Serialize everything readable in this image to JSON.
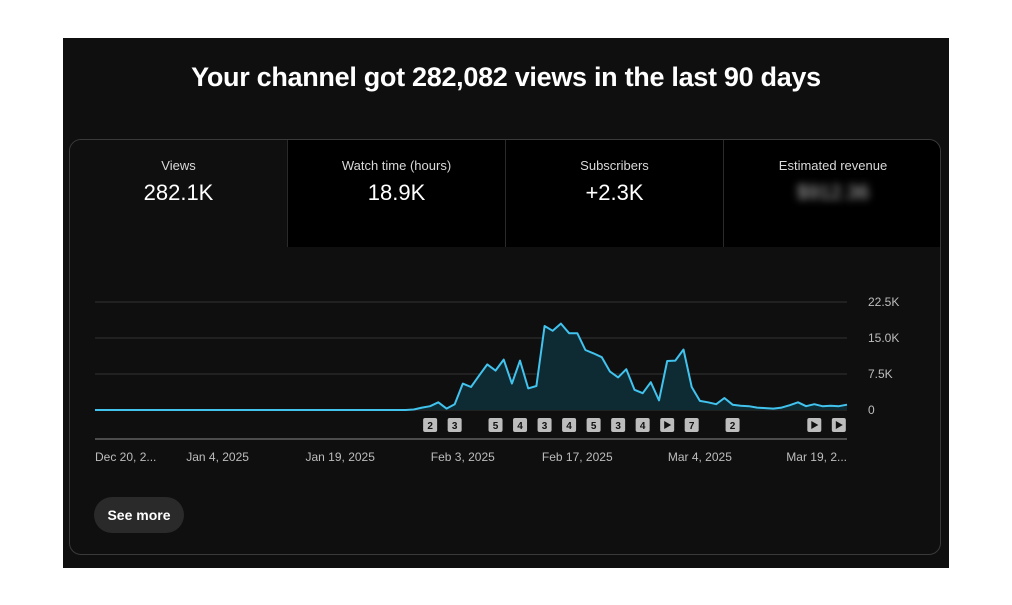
{
  "headline": "Your channel got 282,082 views in the last 90 days",
  "tabs": [
    {
      "label": "Views",
      "value": "282.1K",
      "selected": true
    },
    {
      "label": "Watch time (hours)",
      "value": "18.9K",
      "selected": false
    },
    {
      "label": "Subscribers",
      "value": "+2.3K",
      "selected": false
    },
    {
      "label": "Estimated revenue",
      "value": "$912.36",
      "selected": false,
      "obscured": true
    }
  ],
  "see_more_label": "See more",
  "colors": {
    "line": "#41c3ee",
    "area": "#0e2a33",
    "grid": "#333333",
    "background": "#0f0f0f"
  },
  "chart_data": {
    "type": "area",
    "title": "",
    "xlabel": "",
    "ylabel": "",
    "x_range": [
      "2024-12-20",
      "2025-03-22"
    ],
    "ylim": [
      0,
      22500
    ],
    "y_ticks": [
      {
        "value": 22500,
        "label": "22.5K"
      },
      {
        "value": 15000,
        "label": "15.0K"
      },
      {
        "value": 7500,
        "label": "7.5K"
      },
      {
        "value": 0,
        "label": "0"
      }
    ],
    "x_ticks": [
      {
        "date": "2024-12-20",
        "label": "Dec 20, 2..."
      },
      {
        "date": "2025-01-04",
        "label": "Jan 4, 2025"
      },
      {
        "date": "2025-01-19",
        "label": "Jan 19, 2025"
      },
      {
        "date": "2025-02-03",
        "label": "Feb 3, 2025"
      },
      {
        "date": "2025-02-17",
        "label": "Feb 17, 2025"
      },
      {
        "date": "2025-03-04",
        "label": "Mar 4, 2025"
      },
      {
        "date": "2025-03-19",
        "label": "Mar 19, 2..."
      }
    ],
    "grid": true,
    "series": [
      {
        "points": [
          [
            "2024-12-20",
            0
          ],
          [
            "2025-01-01",
            0
          ],
          [
            "2025-01-15",
            0
          ],
          [
            "2025-01-27",
            0
          ],
          [
            "2025-01-28",
            100
          ],
          [
            "2025-01-29",
            500
          ],
          [
            "2025-01-30",
            800
          ],
          [
            "2025-01-31",
            1600
          ],
          [
            "2025-02-01",
            300
          ],
          [
            "2025-02-02",
            1200
          ],
          [
            "2025-02-03",
            5500
          ],
          [
            "2025-02-04",
            4800
          ],
          [
            "2025-02-05",
            7200
          ],
          [
            "2025-02-06",
            9500
          ],
          [
            "2025-02-07",
            8200
          ],
          [
            "2025-02-08",
            10500
          ],
          [
            "2025-02-09",
            5500
          ],
          [
            "2025-02-10",
            10300
          ],
          [
            "2025-02-11",
            4500
          ],
          [
            "2025-02-12",
            5000
          ],
          [
            "2025-02-13",
            17500
          ],
          [
            "2025-02-14",
            16500
          ],
          [
            "2025-02-15",
            18000
          ],
          [
            "2025-02-16",
            16000
          ],
          [
            "2025-02-17",
            16000
          ],
          [
            "2025-02-18",
            12500
          ],
          [
            "2025-02-19",
            11800
          ],
          [
            "2025-02-20",
            11000
          ],
          [
            "2025-02-21",
            8000
          ],
          [
            "2025-02-22",
            6800
          ],
          [
            "2025-02-23",
            8500
          ],
          [
            "2025-02-24",
            4200
          ],
          [
            "2025-02-25",
            3500
          ],
          [
            "2025-02-26",
            5800
          ],
          [
            "2025-02-27",
            2000
          ],
          [
            "2025-02-28",
            10200
          ],
          [
            "2025-03-01",
            10300
          ],
          [
            "2025-03-02",
            12600
          ],
          [
            "2025-03-03",
            4800
          ],
          [
            "2025-03-04",
            1900
          ],
          [
            "2025-03-05",
            1600
          ],
          [
            "2025-03-06",
            1200
          ],
          [
            "2025-03-07",
            2500
          ],
          [
            "2025-03-08",
            1100
          ],
          [
            "2025-03-09",
            900
          ],
          [
            "2025-03-10",
            800
          ],
          [
            "2025-03-11",
            500
          ],
          [
            "2025-03-12",
            400
          ],
          [
            "2025-03-13",
            300
          ],
          [
            "2025-03-14",
            500
          ],
          [
            "2025-03-15",
            1000
          ],
          [
            "2025-03-16",
            1600
          ],
          [
            "2025-03-17",
            800
          ],
          [
            "2025-03-18",
            1200
          ],
          [
            "2025-03-19",
            800
          ],
          [
            "2025-03-20",
            900
          ],
          [
            "2025-03-21",
            800
          ],
          [
            "2025-03-22",
            1100
          ]
        ]
      }
    ],
    "markers": [
      {
        "date": "2025-01-30",
        "kind": "count",
        "label": "2"
      },
      {
        "date": "2025-02-02",
        "kind": "count",
        "label": "3"
      },
      {
        "date": "2025-02-07",
        "kind": "count",
        "label": "5"
      },
      {
        "date": "2025-02-10",
        "kind": "count",
        "label": "4"
      },
      {
        "date": "2025-02-13",
        "kind": "count",
        "label": "3"
      },
      {
        "date": "2025-02-16",
        "kind": "count",
        "label": "4"
      },
      {
        "date": "2025-02-19",
        "kind": "count",
        "label": "5"
      },
      {
        "date": "2025-02-22",
        "kind": "count",
        "label": "3"
      },
      {
        "date": "2025-02-25",
        "kind": "count",
        "label": "4"
      },
      {
        "date": "2025-02-28",
        "kind": "video",
        "label": ""
      },
      {
        "date": "2025-03-03",
        "kind": "count",
        "label": "7"
      },
      {
        "date": "2025-03-08",
        "kind": "count",
        "label": "2"
      },
      {
        "date": "2025-03-18",
        "kind": "video",
        "label": ""
      },
      {
        "date": "2025-03-21",
        "kind": "video",
        "label": ""
      }
    ]
  }
}
